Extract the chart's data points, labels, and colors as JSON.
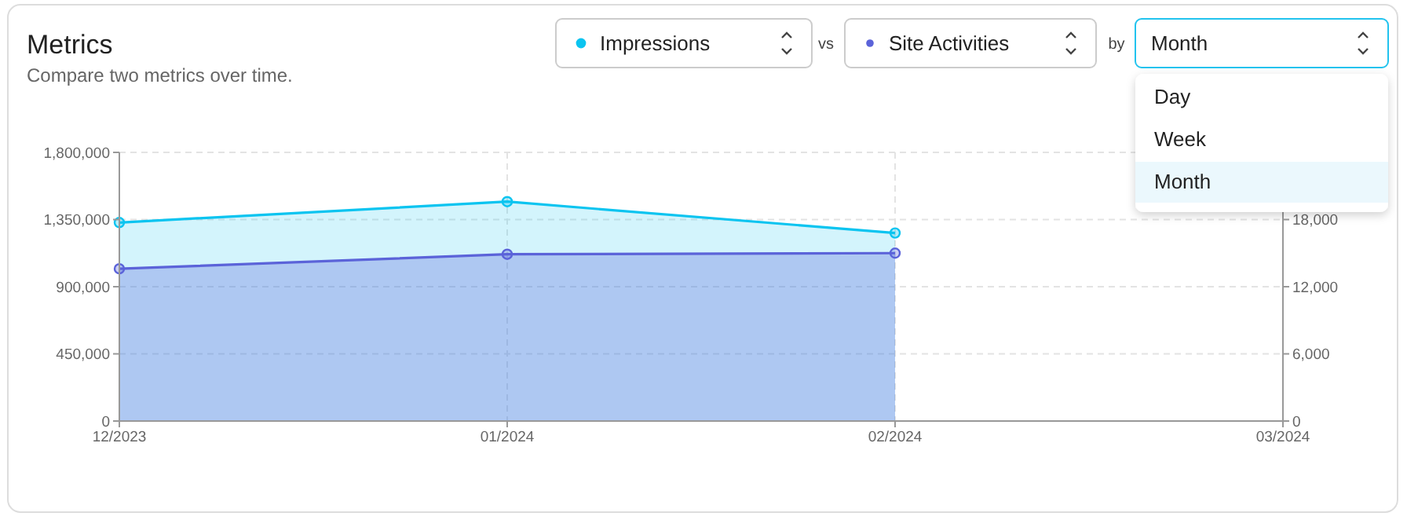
{
  "chart_data": {
    "type": "area",
    "title": "Metrics",
    "subtitle": "Compare two metrics over time.",
    "categories": [
      "12/2023",
      "01/2024",
      "02/2024",
      "03/2024"
    ],
    "series": [
      {
        "name": "Impressions",
        "color": "#0bc4f0",
        "values": [
          1330000,
          1470000,
          1260000,
          null
        ]
      },
      {
        "name": "Site Activities",
        "color": "#5b63d9",
        "values": [
          13600,
          14900,
          15000,
          null
        ],
        "axis": "y2"
      }
    ],
    "ylim": [
      0,
      1800000
    ],
    "yticks": [
      0,
      {
        "value": 450000,
        "label": "450,000"
      },
      {
        "value": 900000,
        "label": "900,000"
      },
      {
        "value": 1350000,
        "label": "1,350,000"
      },
      {
        "value": 1800000,
        "label": "1,800,000"
      }
    ],
    "y2lim": [
      0,
      24000
    ],
    "y2ticks": [
      0,
      {
        "value": 6000,
        "label": "6,000"
      },
      {
        "value": 12000,
        "label": "12,000"
      },
      {
        "value": 18000,
        "label": "18,000"
      }
    ],
    "grid": true,
    "legend": "top right",
    "marker": "circle",
    "annotations": [
      "vs",
      "by",
      "Month",
      "Day",
      "Week",
      "Month"
    ]
  }
}
